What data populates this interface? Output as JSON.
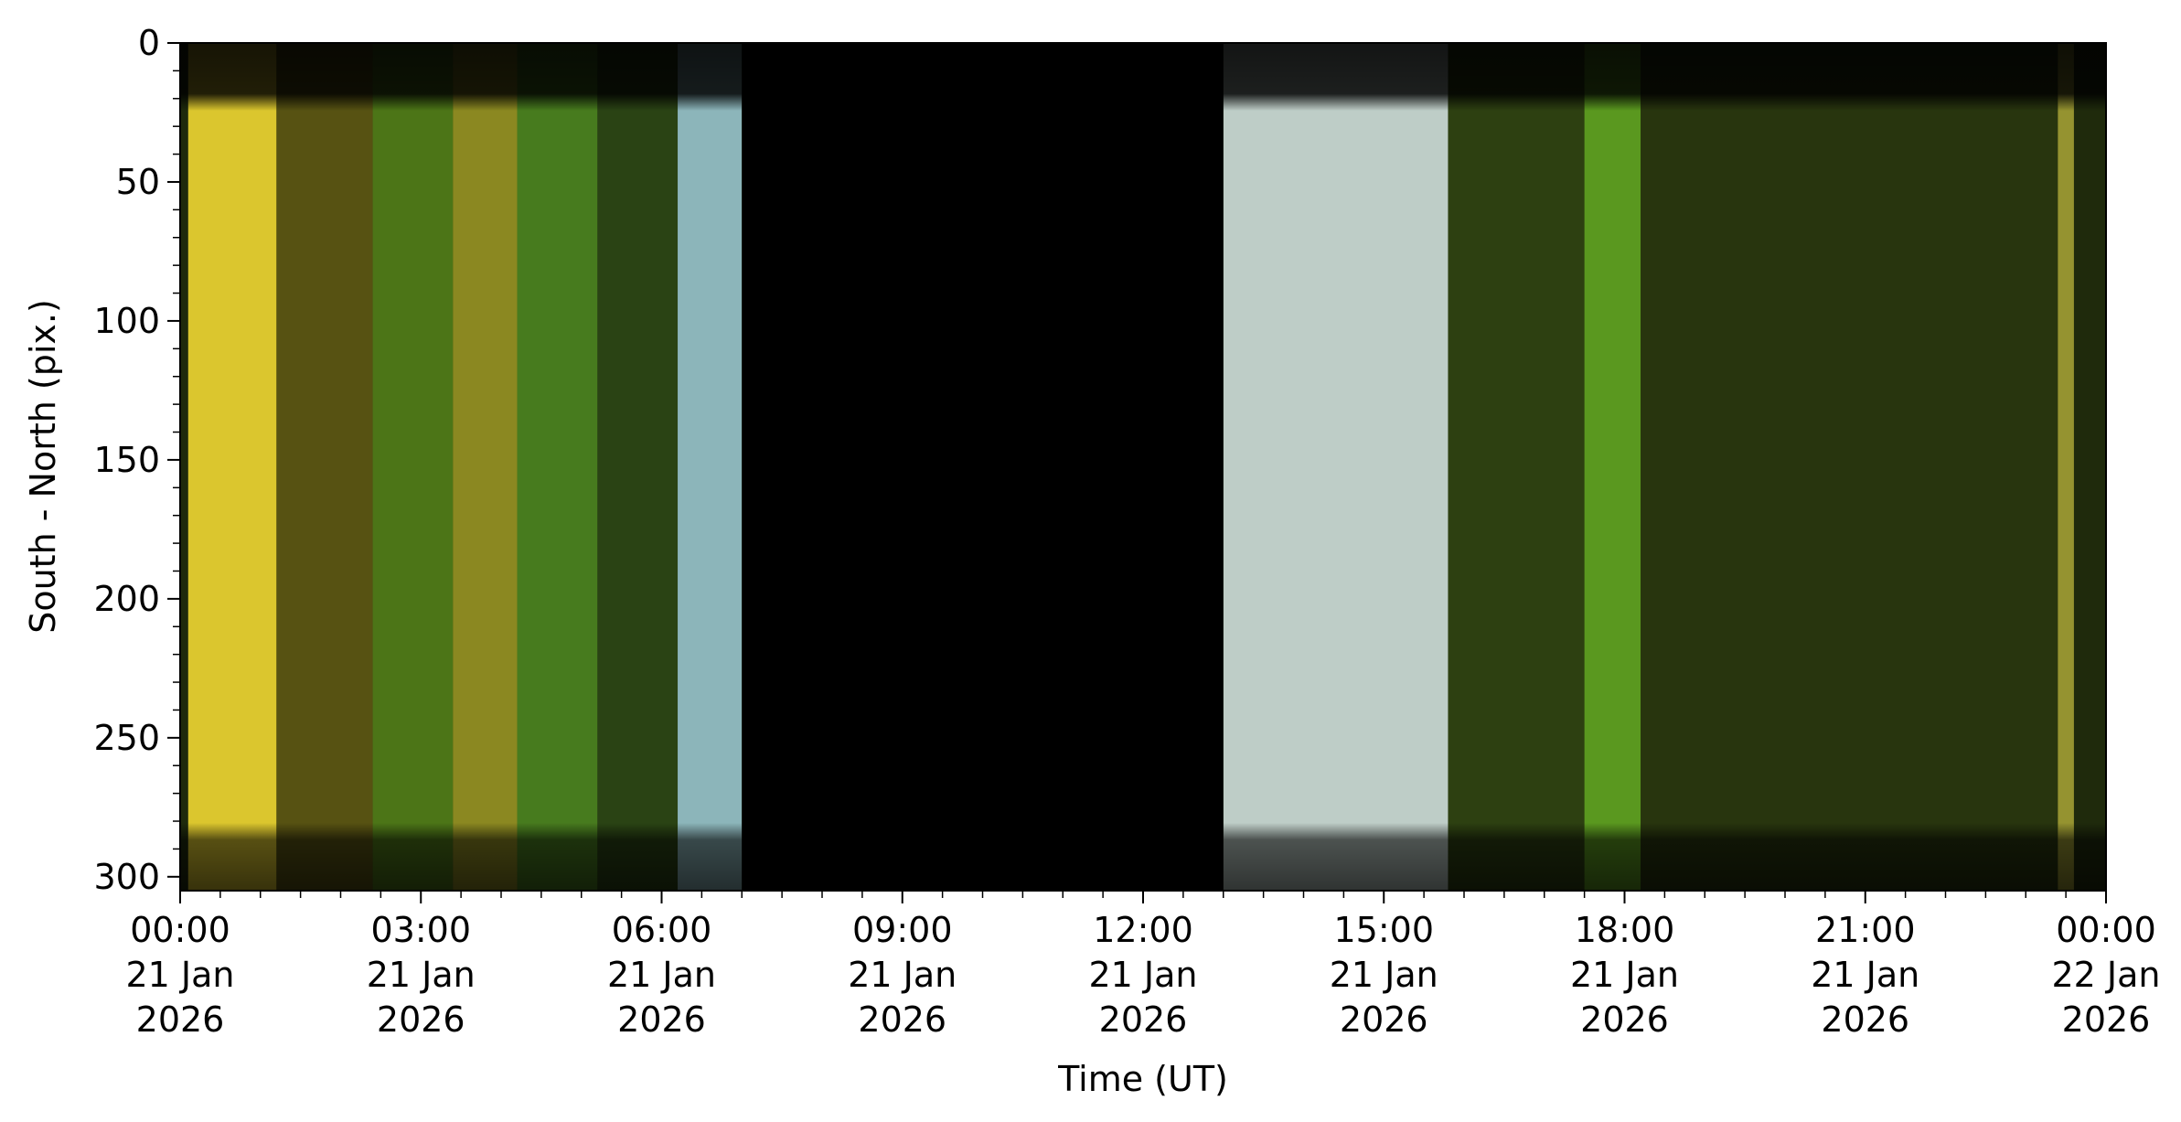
{
  "chart_data": {
    "type": "heatmap",
    "title": "",
    "xlabel": "Time (UT)",
    "ylabel": "South - North (pix.)",
    "y_axis_inverted": true,
    "ylim": [
      0,
      305
    ],
    "xlim_hours": [
      0,
      24
    ],
    "y_ticks": [
      0,
      50,
      100,
      150,
      200,
      250,
      300
    ],
    "x_ticks": [
      {
        "hour": 0,
        "time": "00:00",
        "date": "21 Jan",
        "year": "2026"
      },
      {
        "hour": 3,
        "time": "03:00",
        "date": "21 Jan",
        "year": "2026"
      },
      {
        "hour": 6,
        "time": "06:00",
        "date": "21 Jan",
        "year": "2026"
      },
      {
        "hour": 9,
        "time": "09:00",
        "date": "21 Jan",
        "year": "2026"
      },
      {
        "hour": 12,
        "time": "12:00",
        "date": "21 Jan",
        "year": "2026"
      },
      {
        "hour": 15,
        "time": "15:00",
        "date": "21 Jan",
        "year": "2026"
      },
      {
        "hour": 18,
        "time": "18:00",
        "date": "21 Jan",
        "year": "2026"
      },
      {
        "hour": 21,
        "time": "21:00",
        "date": "21 Jan",
        "year": "2026"
      },
      {
        "hour": 24,
        "time": "00:00",
        "date": "22 Jan",
        "year": "2026"
      }
    ],
    "grid": false,
    "legend": "none",
    "colormap": "true-color composite (yellow, green, cyan, white)",
    "dark_period_hours": [
      7.0,
      13.0
    ],
    "twilight_bands": [
      {
        "start_hour": 6.2,
        "end_hour": 7.0,
        "color": "#a8d8e6"
      },
      {
        "start_hour": 13.0,
        "end_hour": 15.8,
        "color": "#e6f6f6"
      }
    ],
    "aurora_bands": [
      {
        "start_hour": 0.1,
        "end_hour": 1.2,
        "color": "#e6cf30",
        "intensity": 0.95
      },
      {
        "start_hour": 1.2,
        "end_hour": 2.4,
        "color": "#8f7a18",
        "intensity": 0.5
      },
      {
        "start_hour": 2.4,
        "end_hour": 3.4,
        "color": "#6aa820",
        "intensity": 0.6
      },
      {
        "start_hour": 3.4,
        "end_hour": 4.2,
        "color": "#b0a828",
        "intensity": 0.75
      },
      {
        "start_hour": 4.2,
        "end_hour": 5.2,
        "color": "#5ea828",
        "intensity": 0.65
      },
      {
        "start_hour": 5.2,
        "end_hour": 6.2,
        "color": "#3c6a20",
        "intensity": 0.4
      },
      {
        "start_hour": 15.8,
        "end_hour": 17.5,
        "color": "#3f5a18",
        "intensity": 0.45
      },
      {
        "start_hour": 17.5,
        "end_hour": 18.2,
        "color": "#74c828",
        "intensity": 0.7
      },
      {
        "start_hour": 18.2,
        "end_hour": 23.4,
        "color": "#3a4a14",
        "intensity": 0.35
      },
      {
        "start_hour": 23.4,
        "end_hour": 23.6,
        "color": "#c8c040",
        "intensity": 0.7
      }
    ]
  }
}
